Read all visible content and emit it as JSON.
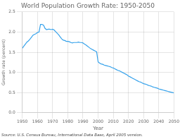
{
  "chart_data": {
    "type": "line",
    "title": "World Population Growth Rate: 1950-2050",
    "xlabel": "Year",
    "ylabel": "Growth rate (percent)",
    "annotations": [
      "Source: U.S. Census Bureau, International Data Base, April 2005 version."
    ],
    "x": [
      1950,
      1951,
      1952,
      1953,
      1954,
      1955,
      1956,
      1957,
      1958,
      1959,
      1960,
      1961,
      1962,
      1963,
      1964,
      1965,
      1966,
      1967,
      1968,
      1969,
      1970,
      1971,
      1972,
      1973,
      1974,
      1975,
      1976,
      1977,
      1978,
      1979,
      1980,
      1981,
      1982,
      1983,
      1984,
      1985,
      1986,
      1987,
      1988,
      1989,
      1990,
      1991,
      1992,
      1993,
      1994,
      1995,
      1996,
      1997,
      1998,
      1999,
      2000,
      2001,
      2002,
      2003,
      2004,
      2005,
      2006,
      2007,
      2008,
      2009,
      2010,
      2011,
      2012,
      2013,
      2014,
      2015,
      2016,
      2017,
      2018,
      2019,
      2020,
      2021,
      2022,
      2023,
      2024,
      2025,
      2026,
      2027,
      2028,
      2029,
      2030,
      2031,
      2032,
      2033,
      2034,
      2035,
      2036,
      2037,
      2038,
      2039,
      2040,
      2041,
      2042,
      2043,
      2044,
      2045,
      2046,
      2047,
      2048,
      2049,
      2050
    ],
    "values": [
      1.6,
      1.65,
      1.7,
      1.75,
      1.78,
      1.82,
      1.87,
      1.92,
      1.94,
      1.96,
      1.99,
      2.0,
      2.19,
      2.19,
      2.17,
      2.09,
      2.06,
      2.07,
      2.07,
      2.06,
      2.07,
      2.05,
      2.01,
      1.97,
      1.93,
      1.88,
      1.83,
      1.8,
      1.79,
      1.77,
      1.77,
      1.76,
      1.74,
      1.73,
      1.74,
      1.74,
      1.74,
      1.75,
      1.74,
      1.74,
      1.73,
      1.7,
      1.68,
      1.65,
      1.62,
      1.59,
      1.57,
      1.55,
      1.53,
      1.51,
      1.26,
      1.23,
      1.21,
      1.2,
      1.18,
      1.17,
      1.16,
      1.15,
      1.14,
      1.12,
      1.11,
      1.09,
      1.07,
      1.05,
      1.04,
      1.02,
      1.0,
      0.98,
      0.96,
      0.94,
      0.91,
      0.89,
      0.87,
      0.85,
      0.83,
      0.81,
      0.79,
      0.77,
      0.76,
      0.74,
      0.72,
      0.71,
      0.7,
      0.68,
      0.67,
      0.66,
      0.64,
      0.63,
      0.62,
      0.61,
      0.59,
      0.58,
      0.57,
      0.56,
      0.55,
      0.54,
      0.53,
      0.52,
      0.51,
      0.5,
      0.49
    ],
    "xlim": [
      1950,
      2050
    ],
    "xticks": [
      1950,
      1960,
      1970,
      1980,
      1990,
      2000,
      2010,
      2020,
      2030,
      2040,
      2050
    ],
    "ylim": [
      0.0,
      2.5
    ],
    "yticks": [
      {
        "value": 0.0,
        "label": "0.0"
      },
      0.5,
      {
        "value": 1.0,
        "label": "1.0"
      },
      1.5,
      {
        "value": 2.0,
        "label": "2.0"
      },
      2.5
    ],
    "grid": true
  }
}
